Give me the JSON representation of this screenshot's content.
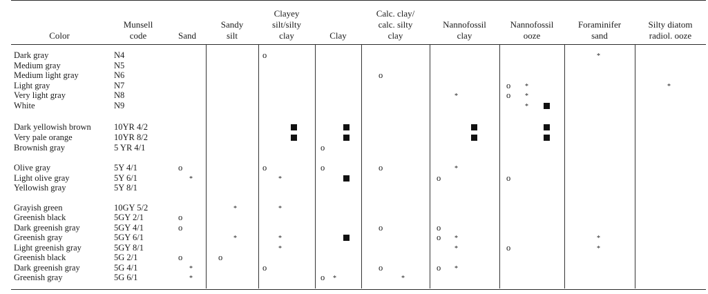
{
  "headers": [
    {
      "key": "color",
      "label": "Color"
    },
    {
      "key": "munsell",
      "label": "Munsell\ncode"
    },
    {
      "key": "sand",
      "label": "Sand"
    },
    {
      "key": "sandy_silt",
      "label": "Sandy\nsilt"
    },
    {
      "key": "clayey_silt",
      "label": "Clayey\nsilt/silty\nclay"
    },
    {
      "key": "clay",
      "label": "Clay"
    },
    {
      "key": "calc_clay",
      "label": "Calc. clay/\ncalc. silty\nclay"
    },
    {
      "key": "nanno_clay",
      "label": "Nannofossil\nclay"
    },
    {
      "key": "nanno_ooze",
      "label": "Nannofossil\nooze"
    },
    {
      "key": "foram_sand",
      "label": "Foraminifer\nsand"
    },
    {
      "key": "silty_diatom",
      "label": "Silty diatom\nradiol. ooze"
    }
  ],
  "rows": [
    {
      "color": "Dark gray",
      "munsell": "N4",
      "marks": [
        [
          "clayey_silt",
          "o",
          0
        ],
        [
          "foram_sand",
          "*",
          0
        ]
      ]
    },
    {
      "color": "Medium gray",
      "munsell": "N5",
      "marks": []
    },
    {
      "color": "Medium light gray",
      "munsell": "N6",
      "marks": [
        [
          "calc_clay",
          "o",
          0
        ]
      ]
    },
    {
      "color": "Light gray",
      "munsell": "N7",
      "marks": [
        [
          "nanno_ooze",
          "o",
          0
        ],
        [
          "nanno_ooze",
          "*",
          1
        ],
        [
          "silty_diatom",
          "*",
          0
        ]
      ]
    },
    {
      "color": "Very light gray",
      "munsell": "N8",
      "marks": [
        [
          "nanno_clay",
          "*",
          1
        ],
        [
          "nanno_ooze",
          "o",
          0
        ],
        [
          "nanno_ooze",
          "*",
          1
        ]
      ]
    },
    {
      "color": "White",
      "munsell": "N9",
      "marks": [
        [
          "nanno_ooze",
          "*",
          1
        ],
        [
          "nanno_ooze",
          "sq",
          2
        ]
      ]
    },
    {
      "color": "Dark yellowish brown",
      "munsell": "10YR 4/2",
      "marks": [
        [
          "clayey_silt",
          "sq",
          2
        ],
        [
          "clay",
          "sq",
          2
        ],
        [
          "nanno_clay",
          "sq",
          2
        ],
        [
          "nanno_ooze",
          "sq",
          2
        ]
      ]
    },
    {
      "color": "Very pale orange",
      "munsell": "10YR 8/2",
      "marks": [
        [
          "clayey_silt",
          "sq",
          2
        ],
        [
          "clay",
          "sq",
          2
        ],
        [
          "nanno_clay",
          "sq",
          2
        ],
        [
          "nanno_ooze",
          "sq",
          2
        ]
      ]
    },
    {
      "color": "Brownish gray",
      "munsell": "5 YR 4/1",
      "marks": [
        [
          "clay",
          "o",
          0
        ]
      ]
    },
    {
      "color": "Olive gray",
      "munsell": "5Y 4/1",
      "marks": [
        [
          "sand",
          "o",
          0
        ],
        [
          "clayey_silt",
          "o",
          0
        ],
        [
          "clay",
          "o",
          0
        ],
        [
          "calc_clay",
          "o",
          0
        ],
        [
          "nanno_clay",
          "*",
          1
        ]
      ]
    },
    {
      "color": "Light olive gray",
      "munsell": "5Y 6/1",
      "marks": [
        [
          "sand",
          "*",
          1
        ],
        [
          "clayey_silt",
          "*",
          1
        ],
        [
          "clay",
          "sq",
          2
        ],
        [
          "nanno_clay",
          "o",
          0
        ],
        [
          "nanno_ooze",
          "o",
          0
        ]
      ]
    },
    {
      "color": "Yellowish gray",
      "munsell": "5Y 8/1",
      "marks": []
    },
    {
      "color": "Grayish green",
      "munsell": "10GY 5/2",
      "marks": [
        [
          "sandy_silt",
          "*",
          1
        ],
        [
          "clayey_silt",
          "*",
          1
        ]
      ]
    },
    {
      "color": "Greenish black",
      "munsell": "5GY 2/1",
      "marks": [
        [
          "sand",
          "o",
          0
        ]
      ]
    },
    {
      "color": "Dark greenish gray",
      "munsell": "5GY 4/1",
      "marks": [
        [
          "sand",
          "o",
          0
        ],
        [
          "calc_clay",
          "o",
          0
        ],
        [
          "nanno_clay",
          "o",
          0
        ]
      ]
    },
    {
      "color": "Greenish gray",
      "munsell": "5GY 6/1",
      "marks": [
        [
          "sandy_silt",
          "*",
          1
        ],
        [
          "clayey_silt",
          "*",
          1
        ],
        [
          "clay",
          "sq",
          2
        ],
        [
          "nanno_clay",
          "o",
          0
        ],
        [
          "nanno_clay",
          "*",
          1
        ],
        [
          "foram_sand",
          "*",
          0
        ]
      ]
    },
    {
      "color": "Light greenish gray",
      "munsell": "5GY 8/1",
      "marks": [
        [
          "clayey_silt",
          "*",
          1
        ],
        [
          "nanno_clay",
          "*",
          1
        ],
        [
          "nanno_ooze",
          "o",
          0
        ],
        [
          "foram_sand",
          "*",
          0
        ]
      ]
    },
    {
      "color": "Greenish black",
      "munsell": "5G 2/1",
      "marks": [
        [
          "sand",
          "o",
          0
        ],
        [
          "sandy_silt",
          "o",
          0
        ]
      ]
    },
    {
      "color": "Dark greenish gray",
      "munsell": "5G 4/1",
      "marks": [
        [
          "sand",
          "*",
          1
        ],
        [
          "clayey_silt",
          "o",
          0
        ],
        [
          "calc_clay",
          "o",
          0
        ],
        [
          "nanno_clay",
          "o",
          0
        ],
        [
          "nanno_clay",
          "*",
          1
        ]
      ]
    },
    {
      "color": "Greenish gray",
      "munsell": "5G 6/1",
      "marks": [
        [
          "sand",
          "*",
          1
        ],
        [
          "clay",
          "o",
          0
        ],
        [
          "clay",
          "*",
          1
        ],
        [
          "calc_clay",
          "*",
          2
        ]
      ]
    }
  ]
}
